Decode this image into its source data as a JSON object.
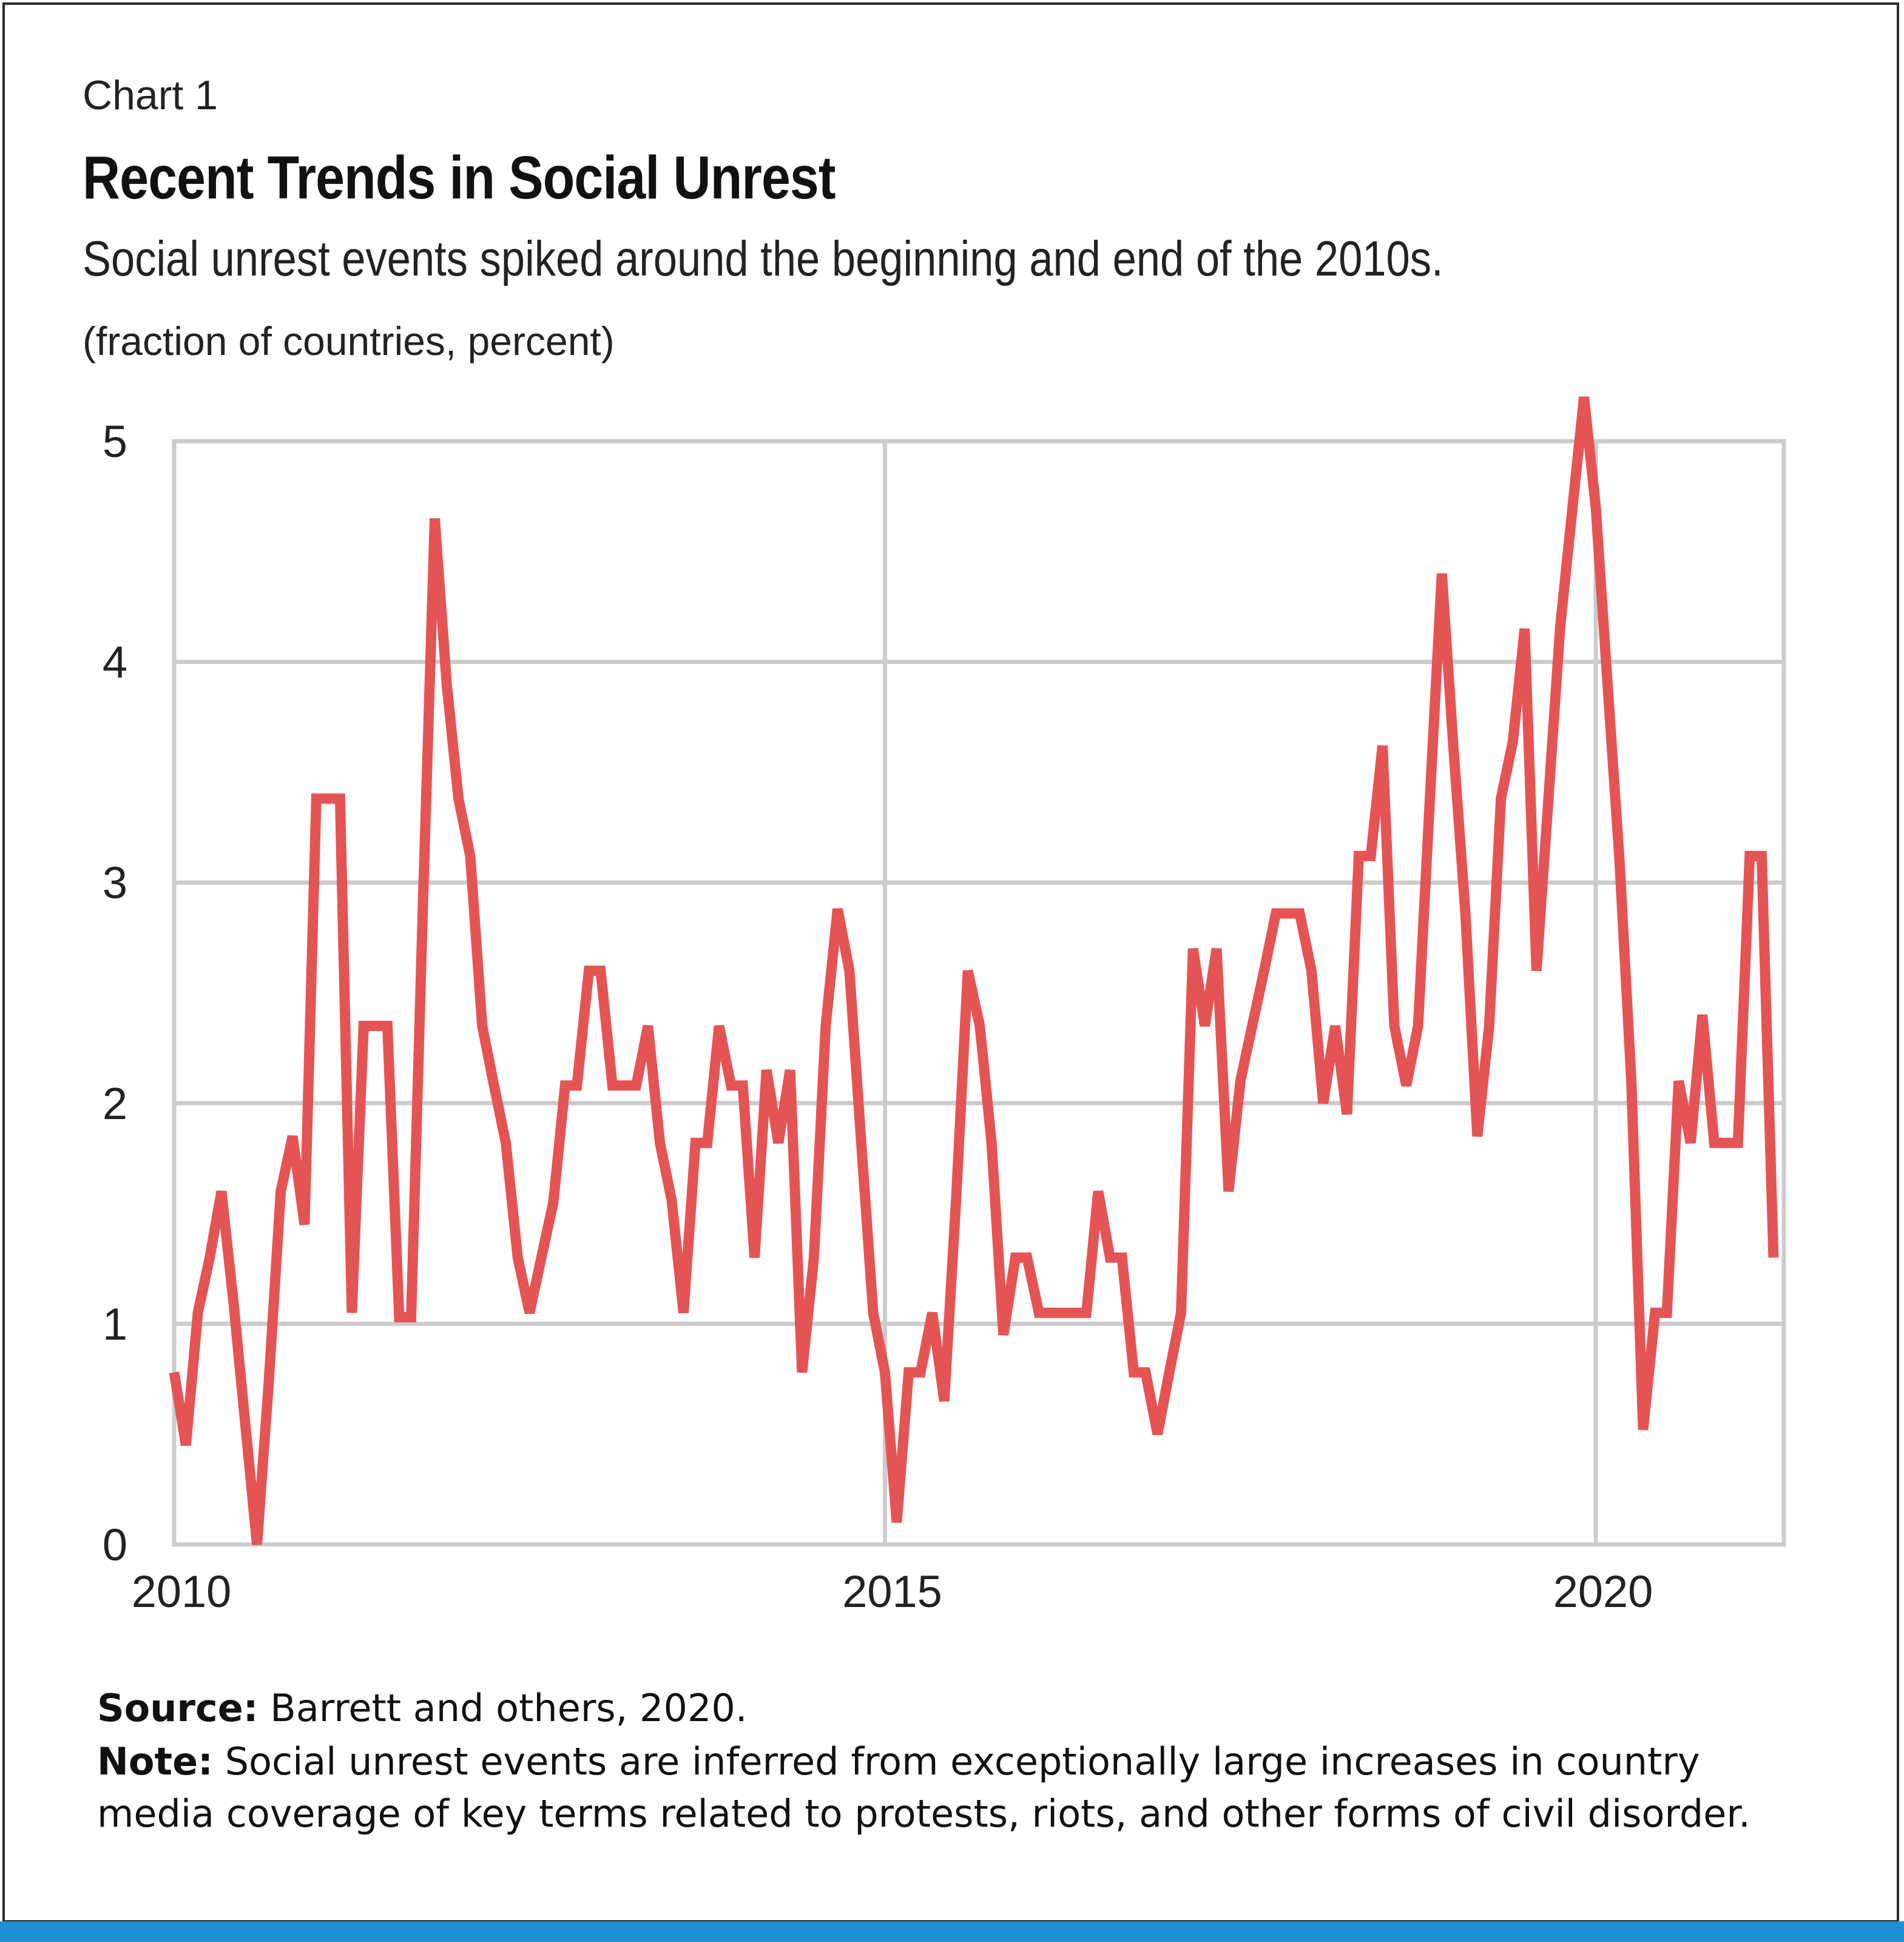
{
  "header": {
    "chart_number": "Chart 1",
    "title": "Recent Trends in Social Unrest",
    "subtitle": "Social unrest events spiked around the beginning and end of the 2010s.",
    "unit_label": "(fraction of countries, percent)"
  },
  "footer": {
    "source_label": "Source:",
    "source_text": "Barrett and others, 2020.",
    "note_label": "Note:",
    "note_text_line1": "Social unrest events are inferred from exceptionally large increases in country",
    "note_text_line2": "media coverage of key terms related to protests, riots, and other forms of civil disorder."
  },
  "colors": {
    "series": "#e55454",
    "grid": "#cccccc",
    "accent_bar": "#1e8fd0"
  },
  "chart_data": {
    "type": "line",
    "title": "Recent Trends in Social Unrest",
    "subtitle": "Social unrest events spiked around the beginning and end of the 2010s.",
    "ylabel": "(fraction of countries, percent)",
    "xlabel": "",
    "xlim": [
      2010,
      2021.3
    ],
    "ylim": [
      0,
      5
    ],
    "x_ticks": [
      2010,
      2015,
      2020
    ],
    "x_tick_labels": [
      "2010",
      "2015",
      "2020"
    ],
    "y_ticks": [
      0,
      1,
      2,
      3,
      4,
      5
    ],
    "y_tick_labels": [
      "0",
      "1",
      "2",
      "3",
      "4",
      "5"
    ],
    "grid": true,
    "legend": "none",
    "series": [
      {
        "color": "#e55454",
        "x": [
          2010.0,
          2010.083,
          2010.167,
          2010.25,
          2010.333,
          2010.417,
          2010.5,
          2010.583,
          2010.667,
          2010.75,
          2010.833,
          2010.917,
          2011.0,
          2011.083,
          2011.167,
          2011.25,
          2011.333,
          2011.417,
          2011.5,
          2011.583,
          2011.667,
          2011.75,
          2011.833,
          2011.917,
          2012.0,
          2012.083,
          2012.167,
          2012.25,
          2012.333,
          2012.417,
          2012.5,
          2012.583,
          2012.667,
          2012.75,
          2012.833,
          2012.917,
          2013.0,
          2013.083,
          2013.167,
          2013.25,
          2013.333,
          2013.417,
          2013.5,
          2013.583,
          2013.667,
          2013.75,
          2013.833,
          2013.917,
          2014.0,
          2014.083,
          2014.167,
          2014.25,
          2014.333,
          2014.417,
          2014.5,
          2014.583,
          2014.667,
          2014.75,
          2014.833,
          2014.917,
          2015.0,
          2015.083,
          2015.167,
          2015.25,
          2015.333,
          2015.417,
          2015.5,
          2015.583,
          2015.667,
          2015.75,
          2015.833,
          2015.917,
          2016.0,
          2016.083,
          2016.167,
          2016.25,
          2016.333,
          2016.417,
          2016.5,
          2016.583,
          2016.667,
          2016.75,
          2016.833,
          2016.917,
          2017.0,
          2017.083,
          2017.167,
          2017.25,
          2017.333,
          2017.417,
          2017.5,
          2017.583,
          2017.667,
          2017.75,
          2017.833,
          2017.917,
          2018.0,
          2018.083,
          2018.167,
          2018.25,
          2018.333,
          2018.417,
          2018.5,
          2018.583,
          2018.667,
          2018.75,
          2018.833,
          2018.917,
          2019.0,
          2019.083,
          2019.167,
          2019.25,
          2019.333,
          2019.417,
          2019.5,
          2019.583,
          2019.667,
          2019.75,
          2019.833,
          2019.917,
          2020.0,
          2020.083,
          2020.167,
          2020.25,
          2020.333,
          2020.417,
          2020.5,
          2020.583,
          2020.667,
          2020.75,
          2020.833,
          2020.917,
          2021.0,
          2021.083,
          2021.167,
          2021.25
        ],
        "values": [
          0.78,
          0.45,
          1.05,
          1.3,
          1.6,
          1.1,
          0.55,
          0.0,
          0.75,
          1.6,
          1.85,
          1.45,
          3.38,
          3.38,
          3.38,
          1.05,
          2.35,
          2.35,
          2.35,
          1.03,
          1.03,
          2.9,
          4.65,
          3.9,
          3.38,
          3.12,
          2.35,
          2.08,
          1.82,
          1.3,
          1.05,
          1.3,
          1.55,
          2.08,
          2.08,
          2.6,
          2.6,
          2.08,
          2.08,
          2.08,
          2.35,
          1.82,
          1.56,
          1.05,
          1.82,
          1.82,
          2.35,
          2.08,
          2.08,
          1.3,
          2.15,
          1.82,
          2.15,
          0.78,
          1.3,
          2.35,
          2.88,
          2.6,
          1.82,
          1.05,
          0.78,
          0.1,
          0.78,
          0.78,
          1.05,
          0.65,
          1.56,
          2.6,
          2.35,
          1.82,
          0.95,
          1.3,
          1.3,
          1.05,
          1.05,
          1.05,
          1.05,
          1.05,
          1.6,
          1.3,
          1.3,
          0.78,
          0.78,
          0.5,
          0.78,
          1.05,
          2.7,
          2.35,
          2.7,
          1.6,
          2.1,
          2.35,
          2.6,
          2.86,
          2.86,
          2.86,
          2.6,
          2.0,
          2.35,
          1.95,
          3.12,
          3.12,
          3.62,
          2.35,
          2.08,
          2.35,
          3.38,
          4.4,
          3.6,
          2.86,
          1.85,
          2.35,
          3.38,
          3.64,
          4.15,
          2.6,
          3.38,
          4.16,
          4.68,
          5.2,
          4.7,
          3.9,
          3.1,
          2.1,
          0.52,
          1.05,
          1.05,
          2.1,
          1.82,
          2.4,
          1.82,
          1.82,
          1.82,
          3.12,
          3.12,
          1.3
        ]
      }
    ]
  }
}
